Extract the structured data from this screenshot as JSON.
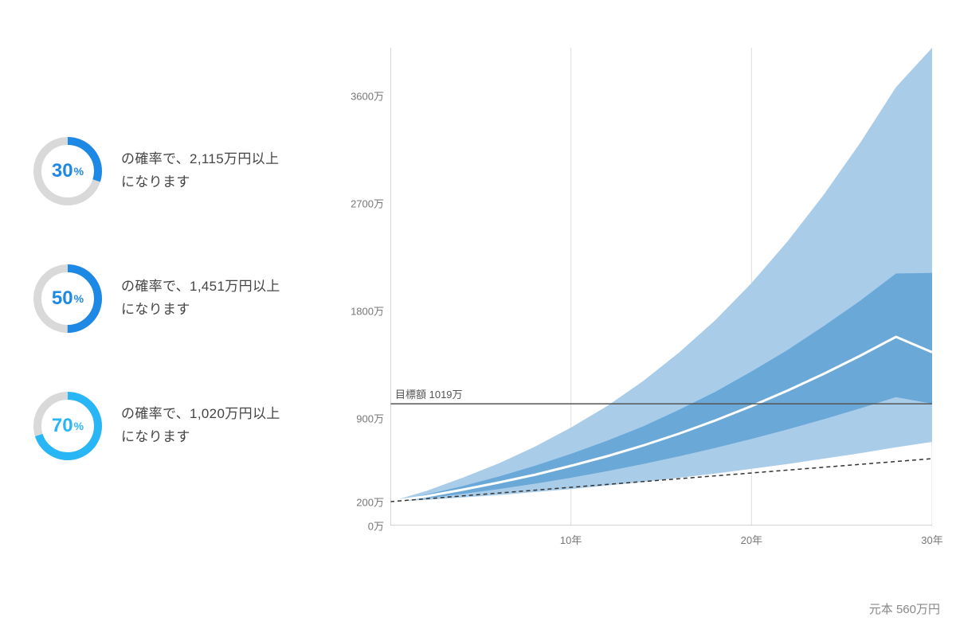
{
  "probabilities": [
    {
      "percent": 30,
      "text": "の確率で、2,115万円以上\nになります",
      "color": "#1e88e5"
    },
    {
      "percent": 50,
      "text": "の確率で、1,451万円以上\nになります",
      "color": "#1e88e5"
    },
    {
      "percent": 70,
      "text": "の確率で、1,020万円以上\nになります",
      "color": "#29b6f6"
    }
  ],
  "chart": {
    "type": "area-fan",
    "x_years": [
      0,
      10,
      20,
      30
    ],
    "x_tick_labels": [
      "",
      "10年",
      "20年",
      "30年"
    ],
    "y_ticks": [
      0,
      200,
      900,
      1800,
      2700,
      3600
    ],
    "y_tick_labels": [
      "0万",
      "200万",
      "900万",
      "1800万",
      "2700万",
      "3600万"
    ],
    "y_max_plot": 4000,
    "target_value": 1019,
    "target_label": "目標額 1019万",
    "principal_label": "元本 560万円",
    "colors": {
      "outer_band": "#a9cce9",
      "inner_band": "#6aa8d8",
      "median_line": "#ffffff",
      "principal_line": "#333333",
      "axis": "#bbbbbb",
      "grid": "#dddddd",
      "target_line": "#555555",
      "background": "#ffffff",
      "donut_track": "#d9d9d9"
    },
    "line_widths": {
      "median": 3,
      "principal_dash": "5,4",
      "principal_w": 1.5,
      "target": 1.5,
      "axis": 1.2,
      "grid": 1
    },
    "series": {
      "years": [
        0,
        2,
        4,
        6,
        8,
        10,
        12,
        14,
        16,
        18,
        20,
        22,
        24,
        26,
        28,
        30
      ],
      "upper_outer": [
        200,
        290,
        400,
        520,
        660,
        820,
        1000,
        1210,
        1450,
        1720,
        2030,
        2380,
        2770,
        3200,
        3670,
        4000
      ],
      "upper_inner": [
        200,
        260,
        330,
        410,
        500,
        600,
        710,
        830,
        970,
        1120,
        1290,
        1470,
        1670,
        1880,
        2110,
        2115
      ],
      "median": [
        200,
        245,
        300,
        360,
        425,
        500,
        580,
        670,
        770,
        880,
        1000,
        1130,
        1270,
        1420,
        1580,
        1451
      ],
      "lower_inner": [
        200,
        230,
        265,
        305,
        350,
        400,
        455,
        515,
        580,
        650,
        725,
        805,
        890,
        980,
        1075,
        1020
      ],
      "lower_outer": [
        200,
        215,
        235,
        255,
        280,
        305,
        335,
        365,
        400,
        435,
        475,
        515,
        560,
        605,
        655,
        700
      ],
      "principal": [
        200,
        224,
        248,
        272,
        296,
        320,
        344,
        368,
        392,
        416,
        440,
        464,
        488,
        512,
        536,
        560
      ]
    }
  }
}
